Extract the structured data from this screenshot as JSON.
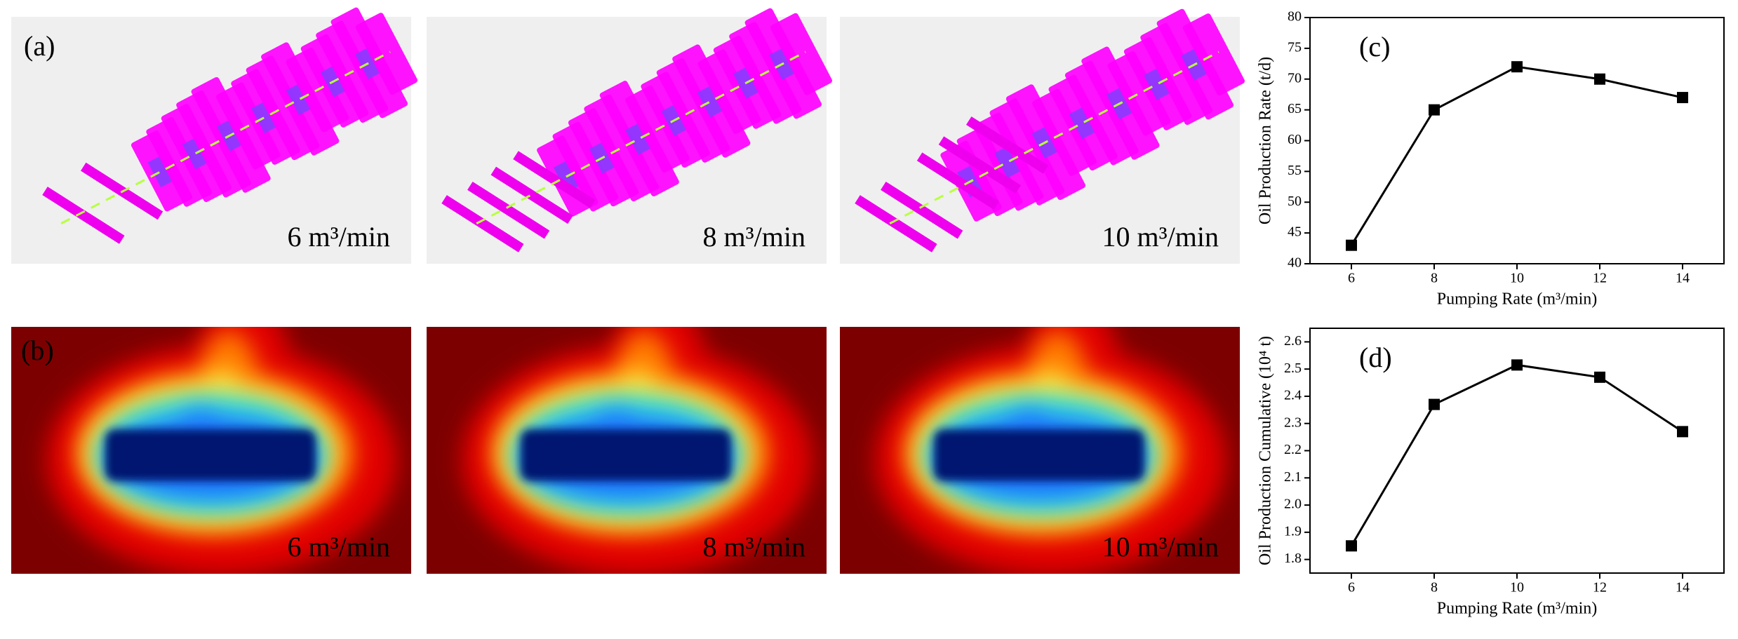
{
  "panels": {
    "a": {
      "label": "(a)",
      "captions": [
        "6 m³/min",
        "8 m³/min",
        "10 m³/min"
      ]
    },
    "b": {
      "label": "(b)",
      "captions": [
        "6 m³/min",
        "8 m³/min",
        "10 m³/min"
      ]
    }
  },
  "chart_data": [
    {
      "type": "line",
      "label": "(c)",
      "x_label": "Pumping Rate (m³/min)",
      "y_label": "Oil Production Rate (t/d)",
      "x": [
        6,
        8,
        10,
        12,
        14
      ],
      "xlim": [
        5,
        15
      ],
      "xticks": [
        6,
        8,
        10,
        12,
        14
      ],
      "ylim": [
        40,
        80
      ],
      "yticks": [
        40,
        45,
        50,
        55,
        60,
        65,
        70,
        75,
        80
      ],
      "marker": "square",
      "series": [
        {
          "color": "#000000",
          "values": [
            43,
            65,
            72,
            70,
            67
          ]
        }
      ]
    },
    {
      "type": "line",
      "label": "(d)",
      "x_label": "Pumping Rate (m³/min)",
      "y_label": "Oil Production Cumulative (10⁴ t)",
      "x": [
        6,
        8,
        10,
        12,
        14
      ],
      "xlim": [
        5,
        15
      ],
      "xticks": [
        6,
        8,
        10,
        12,
        14
      ],
      "ylim": [
        1.75,
        2.65
      ],
      "yticks": [
        1.8,
        1.9,
        {
          "value": 2,
          "label": "2.0"
        },
        2.1,
        2.2,
        2.3,
        2.4,
        2.5,
        2.6
      ],
      "marker": "square",
      "series": [
        {
          "color": "#000000",
          "values": [
            1.85,
            2.37,
            2.515,
            2.47,
            2.27
          ]
        }
      ]
    }
  ]
}
